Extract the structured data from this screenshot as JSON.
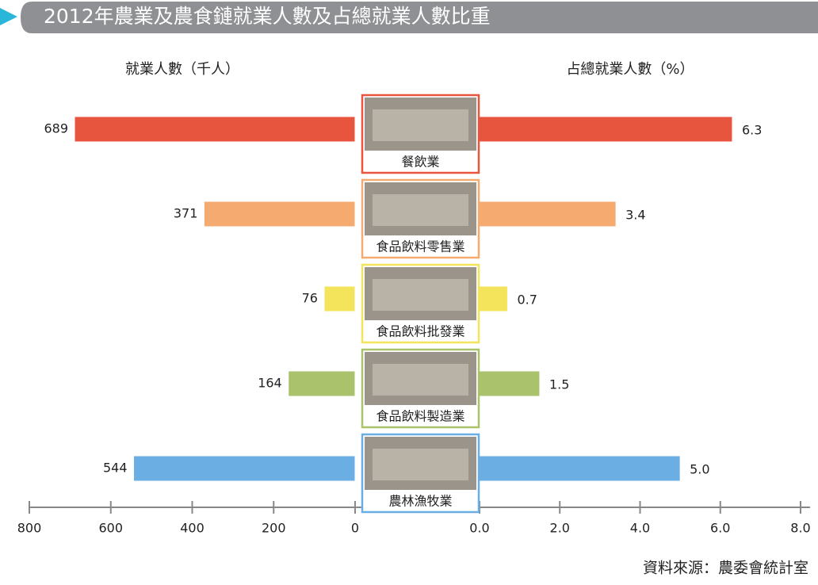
{
  "chart_data": {
    "type": "butterfly",
    "title": "2012年農業及農食鏈就業人數及占總就業人數比重",
    "source": "資料來源：農委會統計室",
    "categories": [
      "餐飲業",
      "食品飲料零售業",
      "食品飲料批發業",
      "食品飲料製造業",
      "農林漁牧業"
    ],
    "category_colors": [
      "#e8553e",
      "#f5aa70",
      "#f3e45c",
      "#a9c26b",
      "#6aaee3"
    ],
    "series": [
      {
        "name": "就業人數（千人）",
        "values": [
          689,
          371,
          76,
          164,
          544
        ]
      },
      {
        "name": "占總就業人數（%）",
        "values": [
          6.3,
          3.4,
          0.7,
          1.5,
          5.0
        ],
        "value_labels": [
          "6.3",
          "3.4",
          "0.7",
          "1.5",
          "5.0"
        ]
      }
    ],
    "xlim_left": [
      0,
      800
    ],
    "xticks_left": [
      0,
      200,
      400,
      600,
      800
    ],
    "xlim_right": [
      0,
      8
    ],
    "xticks_right": [
      {
        "value": 0,
        "label": "0.0"
      },
      {
        "value": 2,
        "label": "2.0"
      },
      {
        "value": 4,
        "label": "4.0"
      },
      {
        "value": 6,
        "label": "6.0"
      },
      {
        "value": 8,
        "label": "8.0"
      }
    ]
  }
}
